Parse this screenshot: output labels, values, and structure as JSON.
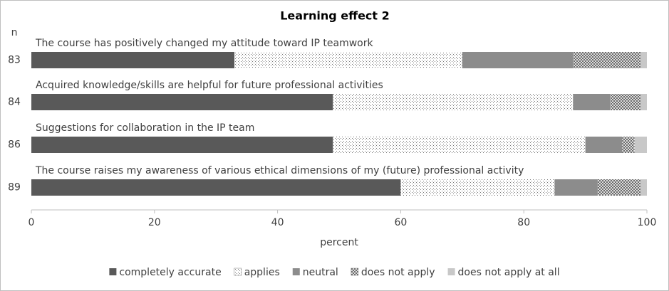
{
  "chart_data": {
    "type": "stacked-barh",
    "title": "Learning effect 2",
    "row_label_title": "n",
    "row_labels": [
      "83",
      "84",
      "86",
      "89"
    ],
    "categories": [
      "The course has positively changed my attitude toward IP teamwork",
      "Acquired knowledge/skills are helpful for future professional activities",
      "Suggestions for collaboration in the IP team",
      "The course raises my awareness of various ethical dimensions of my (future) professional activity"
    ],
    "series": [
      {
        "name": "completely accurate",
        "color": "#595959",
        "values": [
          33,
          49,
          49,
          60
        ]
      },
      {
        "name": "applies",
        "color": "#ffffff",
        "pattern": "dots",
        "values": [
          37,
          39,
          41,
          25
        ]
      },
      {
        "name": "neutral",
        "color": "#8c8c8c",
        "values": [
          18,
          6,
          6,
          7
        ]
      },
      {
        "name": "does not apply",
        "color": "#ffffff",
        "pattern": "hatch",
        "values": [
          11,
          5,
          2,
          7
        ]
      },
      {
        "name": "does not apply at all",
        "color": "#c8c8c8",
        "values": [
          1,
          1,
          2,
          1
        ]
      }
    ],
    "xlabel": "percent",
    "xlim": [
      0,
      100
    ],
    "xticks": [
      0,
      20,
      40,
      60,
      80,
      100
    ],
    "legend": "bottom"
  }
}
